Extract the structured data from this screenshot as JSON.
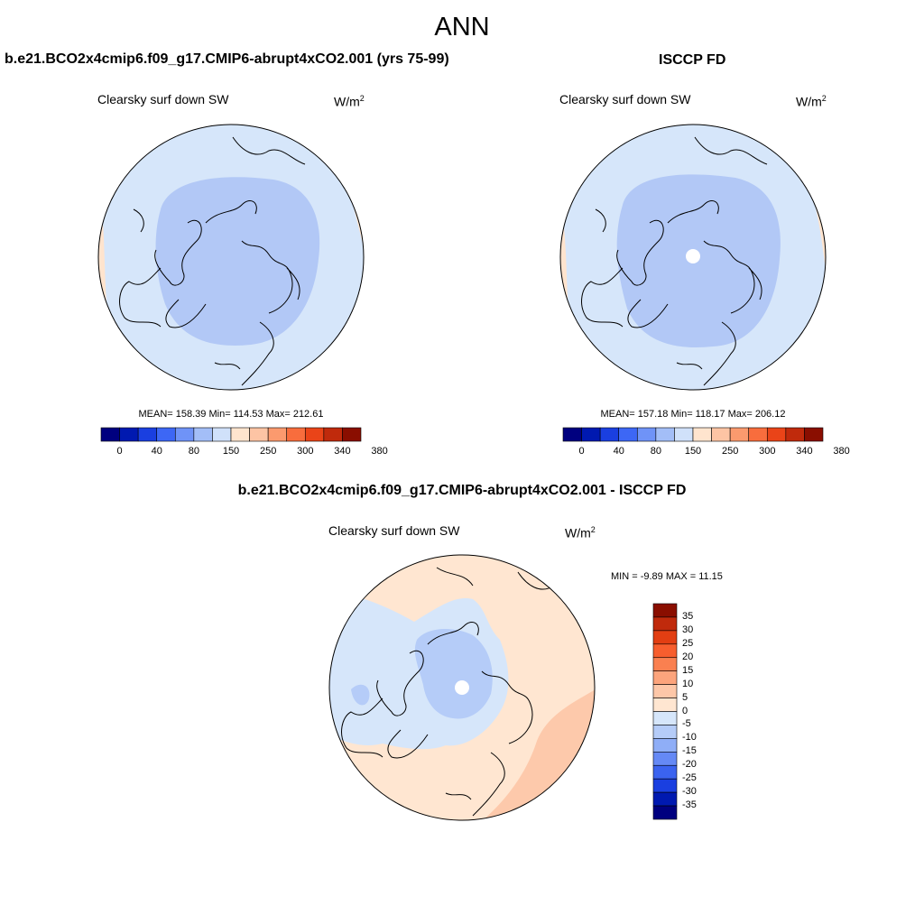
{
  "figure_title": "ANN",
  "panel_a": {
    "case_title": "b.e21.BCO2x4cmip6.f09_g17.CMIP6-abrupt4xCO2.001 (yrs 75-99)",
    "variable": "Clearsky surf down SW",
    "units_base": "W/m",
    "units_exp": "2",
    "stats": "MEAN= 158.39  Min= 114.53  Max= 212.61",
    "colorbar_labels": [
      "0",
      "40",
      "80",
      "150",
      "250",
      "300",
      "340",
      "380"
    ]
  },
  "panel_b": {
    "case_title": "ISCCP FD",
    "variable": "Clearsky surf down SW",
    "units_base": "W/m",
    "units_exp": "2",
    "stats": "MEAN= 157.18  Min= 118.17  Max= 206.12",
    "colorbar_labels": [
      "0",
      "40",
      "80",
      "150",
      "250",
      "300",
      "340",
      "380"
    ]
  },
  "panel_diff": {
    "case_title": "b.e21.BCO2x4cmip6.f09_g17.CMIP6-abrupt4xCO2.001 - ISCCP FD",
    "variable": "Clearsky surf down SW",
    "units_base": "W/m",
    "units_exp": "2",
    "stats": "MIN =  -9.89 MAX =  11.15",
    "colorbar_labels": [
      "35",
      "30",
      "25",
      "20",
      "15",
      "10",
      "5",
      "0",
      "-5",
      "-10",
      "-15",
      "-20",
      "-25",
      "-30",
      "-35"
    ]
  },
  "colors": {
    "abs_colorbar": [
      "#00007F",
      "#0019B0",
      "#1A3FE0",
      "#3D67F5",
      "#6F93F7",
      "#A3BEF7",
      "#D0E1FA",
      "#FFE4CE",
      "#FDC4A4",
      "#FB9A6E",
      "#F86D3D",
      "#EA4418",
      "#C02A0C",
      "#8A0E00"
    ],
    "diff_colorbar": [
      "#8A0E00",
      "#C02A0C",
      "#E23E12",
      "#F75E2E",
      "#FA8050",
      "#FCA47C",
      "#FDC7A8",
      "#FFE6D1",
      "#D6E6FA",
      "#B5CCF8",
      "#8FAEF7",
      "#6589F5",
      "#3B63EF",
      "#1A3FE0",
      "#0019B0",
      "#00007F"
    ],
    "map_light_blue": "#D6E6FA",
    "map_mid_blue": "#B2C8F6",
    "map_peach": "#FFE6D1",
    "map_orange": "#FDC9AB"
  },
  "chart_data": [
    {
      "type": "heatmap",
      "title": "b.e21.BCO2x4cmip6.f09_g17.CMIP6-abrupt4xCO2.001 (yrs 75-99)",
      "subtitle": "Clearsky surf down SW",
      "units": "W/m2",
      "projection": "north polar stereographic",
      "mean": 158.39,
      "min": 114.53,
      "max": 212.61,
      "contour_levels": [
        0,
        20,
        40,
        60,
        80,
        100,
        150,
        200,
        250,
        275,
        300,
        320,
        340,
        360,
        380
      ]
    },
    {
      "type": "heatmap",
      "title": "ISCCP FD",
      "subtitle": "Clearsky surf down SW",
      "units": "W/m2",
      "projection": "north polar stereographic",
      "mean": 157.18,
      "min": 118.17,
      "max": 206.12,
      "contour_levels": [
        0,
        20,
        40,
        60,
        80,
        100,
        150,
        200,
        250,
        275,
        300,
        320,
        340,
        360,
        380
      ]
    },
    {
      "type": "heatmap",
      "title": "b.e21.BCO2x4cmip6.f09_g17.CMIP6-abrupt4xCO2.001 - ISCCP FD",
      "subtitle": "Clearsky surf down SW",
      "units": "W/m2",
      "projection": "north polar stereographic",
      "min": -9.89,
      "max": 11.15,
      "contour_levels": [
        -35,
        -30,
        -25,
        -20,
        -15,
        -10,
        -5,
        0,
        5,
        10,
        15,
        20,
        25,
        30,
        35
      ]
    }
  ]
}
